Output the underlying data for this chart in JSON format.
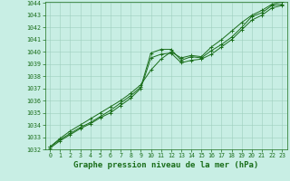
{
  "x": [
    0,
    1,
    2,
    3,
    4,
    5,
    6,
    7,
    8,
    9,
    10,
    11,
    12,
    13,
    14,
    15,
    16,
    17,
    18,
    19,
    20,
    21,
    22,
    23
  ],
  "line1": [
    1032.2,
    1032.8,
    1033.3,
    1033.8,
    1034.2,
    1034.7,
    1035.2,
    1035.8,
    1036.4,
    1037.1,
    1039.9,
    1040.2,
    1040.2,
    1039.3,
    1039.6,
    1039.5,
    1040.1,
    1040.6,
    1041.2,
    1042.0,
    1042.9,
    1043.2,
    1043.8,
    1043.9
  ],
  "line2": [
    1032.2,
    1032.9,
    1033.5,
    1034.0,
    1034.5,
    1035.0,
    1035.5,
    1036.0,
    1036.6,
    1037.3,
    1038.5,
    1039.4,
    1040.0,
    1039.5,
    1039.7,
    1039.6,
    1040.4,
    1041.0,
    1041.7,
    1042.4,
    1043.0,
    1043.4,
    1043.9,
    1044.1
  ],
  "line3": [
    1032.1,
    1032.7,
    1033.2,
    1033.7,
    1034.1,
    1034.6,
    1035.0,
    1035.6,
    1036.2,
    1037.0,
    1039.5,
    1039.8,
    1039.9,
    1039.1,
    1039.3,
    1039.4,
    1039.8,
    1040.4,
    1041.0,
    1041.8,
    1042.6,
    1043.0,
    1043.6,
    1043.8
  ],
  "ylim": [
    1032,
    1044
  ],
  "xlim": [
    -0.5,
    23.5
  ],
  "yticks": [
    1032,
    1033,
    1034,
    1035,
    1036,
    1037,
    1038,
    1039,
    1040,
    1041,
    1042,
    1043,
    1044
  ],
  "xticks": [
    0,
    1,
    2,
    3,
    4,
    5,
    6,
    7,
    8,
    9,
    10,
    11,
    12,
    13,
    14,
    15,
    16,
    17,
    18,
    19,
    20,
    21,
    22,
    23
  ],
  "line_color": "#1a6e1a",
  "marker_color": "#1a6e1a",
  "bg_color": "#c8eee4",
  "grid_color": "#9ecfbe",
  "xlabel": "Graphe pression niveau de la mer (hPa)",
  "xlabel_color": "#1a6e1a",
  "tick_color": "#1a6e1a",
  "tick_fontsize": 4.8,
  "xlabel_fontsize": 6.5
}
